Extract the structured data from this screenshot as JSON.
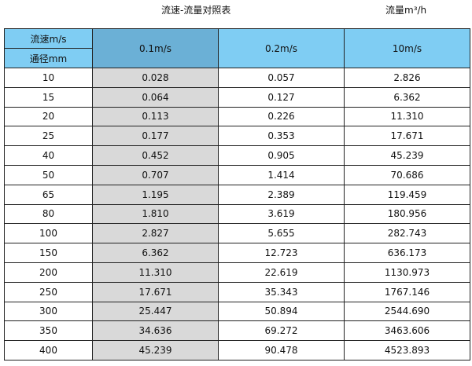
{
  "title": "流速-流量对照表",
  "unit": "流量m³/h",
  "header": {
    "velocity_label": "流速m/s",
    "diameter_label": "通径mm",
    "columns": [
      "0.1m/s",
      "0.2m/s",
      "10m/s"
    ]
  },
  "colors": {
    "header": "#7fcdf3",
    "header_selected": "#6bb0d6",
    "highlight_column": "#d9d9d9"
  },
  "rows": [
    [
      "10",
      "0.028",
      "0.057",
      "2.826"
    ],
    [
      "15",
      "0.064",
      "0.127",
      "6.362"
    ],
    [
      "20",
      "0.113",
      "0.226",
      "11.310"
    ],
    [
      "25",
      "0.177",
      "0.353",
      "17.671"
    ],
    [
      "40",
      "0.452",
      "0.905",
      "45.239"
    ],
    [
      "50",
      "0.707",
      "1.414",
      "70.686"
    ],
    [
      "65",
      "1.195",
      "2.389",
      "119.459"
    ],
    [
      "80",
      "1.810",
      "3.619",
      "180.956"
    ],
    [
      "100",
      "2.827",
      "5.655",
      "282.743"
    ],
    [
      "150",
      "6.362",
      "12.723",
      "636.173"
    ],
    [
      "200",
      "11.310",
      "22.619",
      "1130.973"
    ],
    [
      "250",
      "17.671",
      "35.343",
      "1767.146"
    ],
    [
      "300",
      "25.447",
      "50.894",
      "2544.690"
    ],
    [
      "350",
      "34.636",
      "69.272",
      "3463.606"
    ],
    [
      "400",
      "45.239",
      "90.478",
      "4523.893"
    ]
  ]
}
